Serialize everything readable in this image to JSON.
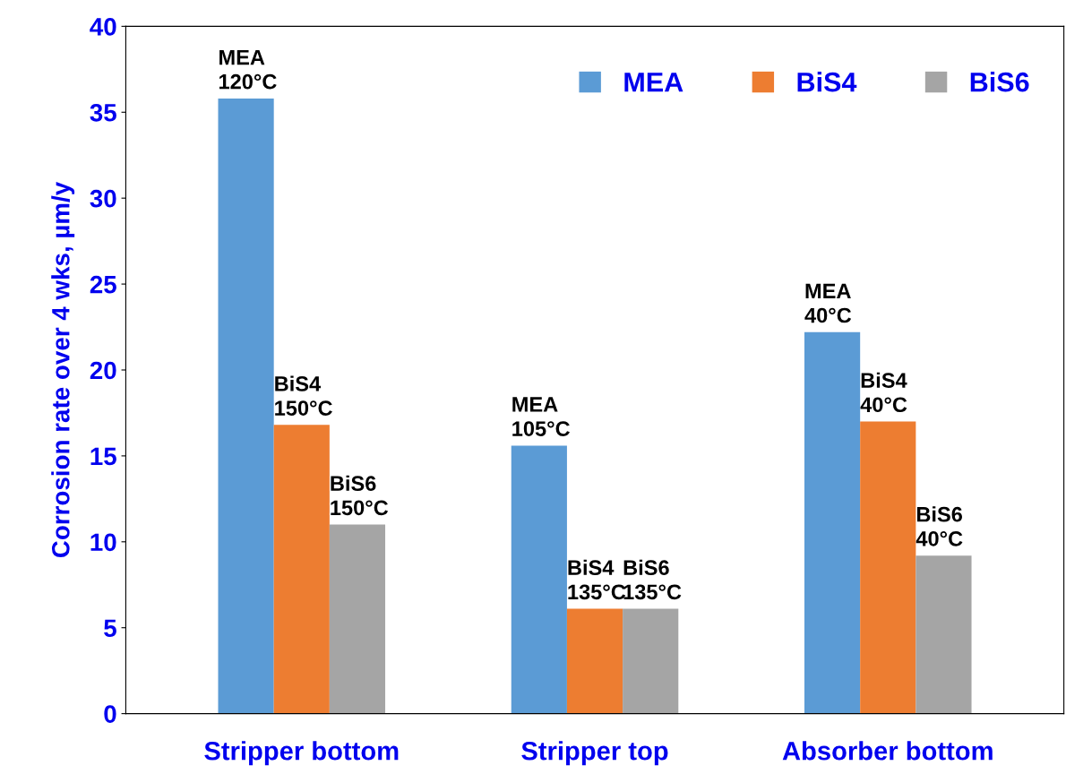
{
  "chart_data": {
    "type": "bar",
    "ylabel": "Corrosion rate over 4 wks, µm/y",
    "categories": [
      "Stripper bottom",
      "Stripper top",
      "Absorber bottom"
    ],
    "series": [
      {
        "name": "MEA",
        "color": "#5b9bd5",
        "values": [
          35.8,
          15.6,
          22.2
        ],
        "value_labels": [
          "MEA\n120°C",
          "MEA\n105°C",
          "MEA\n40°C"
        ]
      },
      {
        "name": "BiS4",
        "color": "#ed7d31",
        "values": [
          16.8,
          6.1,
          17.0
        ],
        "value_labels": [
          "BiS4\n150°C",
          "BiS4\n135°C",
          "BiS4\n40°C"
        ]
      },
      {
        "name": "BiS6",
        "color": "#a5a5a5",
        "values": [
          11.0,
          6.1,
          9.2
        ],
        "value_labels": [
          "BiS6\n150°C",
          "BiS6\n135°C",
          "BiS6\n40°C"
        ]
      }
    ],
    "ylim": [
      0,
      40
    ],
    "yticks": [
      0,
      5,
      10,
      15,
      20,
      25,
      30,
      35,
      40
    ],
    "grid": false,
    "legend": "top right"
  }
}
